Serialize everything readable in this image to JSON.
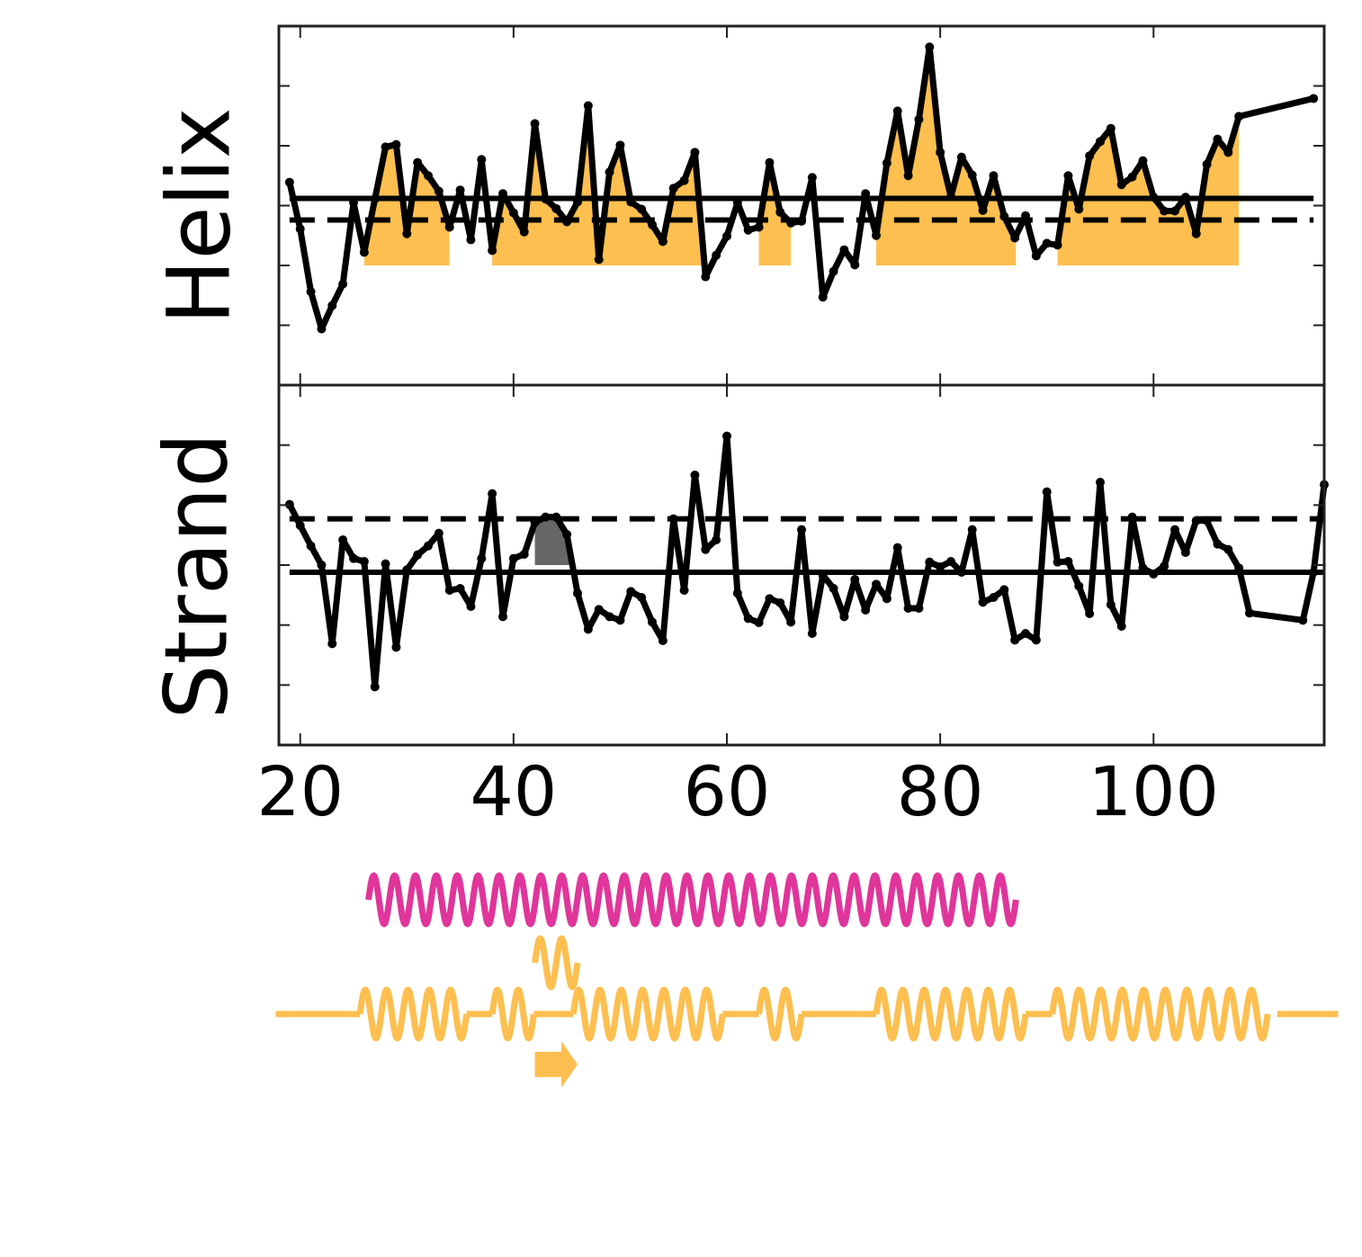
{
  "chart_data": [
    {
      "type": "line",
      "ylabel": "Helix",
      "color": "#000000",
      "xlim": [
        18,
        116
      ],
      "xticks": [
        20,
        40,
        60,
        80,
        100
      ],
      "ylim": [
        -3,
        3
      ],
      "yticks": [
        -2,
        -1,
        0,
        1,
        2
      ],
      "x": [
        19,
        20,
        21,
        22,
        23,
        24,
        25,
        26,
        27,
        28,
        29,
        30,
        31,
        32,
        33,
        34,
        35,
        36,
        37,
        38,
        39,
        40,
        41,
        42,
        43,
        44,
        45,
        46,
        47,
        48,
        49,
        50,
        51,
        52,
        53,
        54,
        55,
        56,
        57,
        58,
        59,
        60,
        61,
        62,
        63,
        64,
        65,
        66,
        67,
        68,
        69,
        70,
        71,
        72,
        73,
        74,
        75,
        76,
        77,
        78,
        79,
        80,
        81,
        82,
        83,
        84,
        85,
        86,
        87,
        88,
        89,
        90,
        91,
        92,
        93,
        94,
        95,
        96,
        97,
        98,
        99,
        100,
        101,
        102,
        103,
        104,
        105,
        106,
        107,
        108,
        115
      ],
      "values": [
        0.39,
        -0.39,
        -1.44,
        -2.06,
        -1.67,
        -1.31,
        0.05,
        -0.78,
        0.11,
        0.98,
        1.02,
        -0.47,
        0.72,
        0.5,
        0.24,
        -0.36,
        0.26,
        -0.57,
        0.77,
        -0.75,
        0.2,
        -0.12,
        -0.44,
        1.37,
        0.11,
        -0.05,
        -0.27,
        0.06,
        1.67,
        -0.9,
        0.56,
        1.01,
        0.06,
        -0.06,
        -0.32,
        -0.6,
        0.29,
        0.42,
        0.89,
        -1.19,
        -0.83,
        -0.51,
        0.05,
        -0.41,
        -0.36,
        0.72,
        -0.11,
        -0.29,
        -0.26,
        0.47,
        -1.53,
        -1.1,
        -0.74,
        -0.99,
        0.2,
        -0.5,
        0.71,
        1.58,
        0.5,
        1.44,
        2.65,
        0.89,
        0.15,
        0.81,
        0.51,
        -0.08,
        0.5,
        -0.18,
        -0.54,
        -0.17,
        -0.84,
        -0.63,
        -0.66,
        0.5,
        -0.06,
        0.83,
        1.07,
        1.29,
        0.35,
        0.48,
        0.75,
        0.14,
        -0.09,
        -0.09,
        0.14,
        -0.47,
        0.69,
        1.11,
        0.89,
        1.49,
        1.79
      ],
      "hlines": [
        {
          "value": 0.12,
          "style": "solid"
        },
        {
          "value": -0.24,
          "style": "dashed"
        }
      ],
      "fill_color": "#fdbf4f",
      "fill_base": -1,
      "shaded_regions": [
        {
          "start": 26,
          "end": 34
        },
        {
          "start": 38,
          "end": 57.7
        },
        {
          "start": 63,
          "end": 66
        },
        {
          "start": 74,
          "end": 87.1
        },
        {
          "start": 91,
          "end": 108
        }
      ]
    },
    {
      "type": "line",
      "ylabel": "Strand",
      "color": "#000000",
      "xlim": [
        18,
        116
      ],
      "xticks": [
        20,
        40,
        60,
        80,
        100
      ],
      "ylim": [
        -3,
        3
      ],
      "yticks": [
        -2,
        -1,
        0,
        1,
        2
      ],
      "x": [
        19,
        20,
        21,
        22,
        23,
        24,
        25,
        26,
        27,
        28,
        29,
        30,
        31,
        32,
        33,
        34,
        35,
        36,
        37,
        38,
        39,
        40,
        41,
        42,
        43,
        44,
        45,
        46,
        47,
        48,
        49,
        50,
        51,
        52,
        53,
        54,
        55,
        56,
        57,
        58,
        59,
        60,
        61,
        62,
        63,
        64,
        65,
        66,
        67,
        68,
        69,
        70,
        71,
        72,
        73,
        74,
        75,
        76,
        77,
        78,
        79,
        80,
        81,
        82,
        83,
        84,
        85,
        86,
        87,
        88,
        89,
        90,
        91,
        92,
        93,
        94,
        95,
        96,
        97,
        98,
        99,
        100,
        101,
        102,
        103,
        104,
        105,
        106,
        107,
        108,
        109,
        114,
        115,
        116
      ],
      "values": [
        1.01,
        0.66,
        0.32,
        0,
        -1.31,
        0.42,
        0.11,
        0.06,
        -2.03,
        0.02,
        -1.37,
        -0.08,
        0.17,
        0.32,
        0.53,
        -0.42,
        -0.39,
        -0.69,
        0.11,
        1.19,
        -0.86,
        0.11,
        0.18,
        0.71,
        0.8,
        0.8,
        0.51,
        -0.47,
        -1.07,
        -0.74,
        -0.86,
        -0.92,
        -0.44,
        -0.54,
        -0.95,
        -1.26,
        0.77,
        -0.42,
        1.5,
        0.26,
        0.42,
        2.15,
        -0.47,
        -0.89,
        -0.96,
        -0.56,
        -0.63,
        -0.95,
        0.59,
        -1.14,
        -0.17,
        -0.39,
        -0.86,
        -0.24,
        -0.75,
        -0.32,
        -0.56,
        0.29,
        -0.72,
        -0.72,
        0.05,
        -0.03,
        0.06,
        -0.12,
        0.59,
        -0.62,
        -0.54,
        -0.41,
        -1.25,
        -1.14,
        -1.25,
        1.22,
        0.05,
        0.06,
        -0.35,
        -0.81,
        1.38,
        -0.66,
        -1.02,
        0.8,
        -0.05,
        -0.15,
        -0.02,
        0.59,
        0.21,
        0.74,
        0.74,
        0.35,
        0.26,
        -0.05,
        -0.8,
        -0.92,
        -0.12,
        1.34
      ],
      "hlines": [
        {
          "value": -0.12,
          "style": "solid"
        },
        {
          "value": 0.77,
          "style": "dashed"
        }
      ],
      "fill_color": "#666666",
      "fill_base": 0,
      "shaded_regions": [
        {
          "start": 42,
          "end": 45.2
        }
      ]
    }
  ],
  "structure_tracks": [
    {
      "color": "#e0359a",
      "elements": [
        {
          "type": "helix",
          "start": 26.4,
          "end": 87.1
        }
      ]
    },
    {
      "color": "#fdbf4f",
      "elements": [
        {
          "type": "helix",
          "start": 42,
          "end": 46
        }
      ]
    },
    {
      "color": "#fdbf4f",
      "elements": [
        {
          "type": "coil",
          "start": 17.7,
          "end": 25.6
        },
        {
          "type": "helix",
          "start": 25.6,
          "end": 35.6
        },
        {
          "type": "coil",
          "start": 35.6,
          "end": 38
        },
        {
          "type": "helix",
          "start": 38,
          "end": 41.9
        },
        {
          "type": "coil",
          "start": 41.9,
          "end": 45.6
        },
        {
          "type": "helix",
          "start": 45.6,
          "end": 59.6
        },
        {
          "type": "coil",
          "start": 59.6,
          "end": 63
        },
        {
          "type": "helix",
          "start": 63,
          "end": 67
        },
        {
          "type": "coil",
          "start": 67,
          "end": 74
        },
        {
          "type": "helix",
          "start": 74,
          "end": 88
        },
        {
          "type": "coil",
          "start": 88,
          "end": 90.5
        },
        {
          "type": "helix",
          "start": 90.5,
          "end": 110.7
        },
        {
          "type": "coil",
          "start": 111.6,
          "end": 117.3
        }
      ]
    },
    {
      "color": "#fdbf4f",
      "elements": [
        {
          "type": "strand",
          "start": 42,
          "end": 46
        }
      ]
    }
  ]
}
